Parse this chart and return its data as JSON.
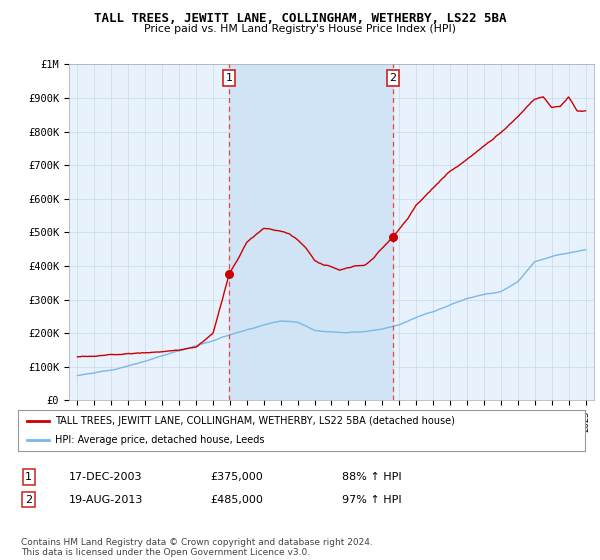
{
  "title": "TALL TREES, JEWITT LANE, COLLINGHAM, WETHERBY, LS22 5BA",
  "subtitle": "Price paid vs. HM Land Registry's House Price Index (HPI)",
  "ylim": [
    0,
    1000000
  ],
  "yticks": [
    0,
    100000,
    200000,
    300000,
    400000,
    500000,
    600000,
    700000,
    800000,
    900000,
    1000000
  ],
  "ytick_labels": [
    "£0",
    "£100K",
    "£200K",
    "£300K",
    "£400K",
    "£500K",
    "£600K",
    "£700K",
    "£800K",
    "£900K",
    "£1M"
  ],
  "xlim_start": 1994.5,
  "xlim_end": 2025.5,
  "xticks": [
    1995,
    1996,
    1997,
    1998,
    1999,
    2000,
    2001,
    2002,
    2003,
    2004,
    2005,
    2006,
    2007,
    2008,
    2009,
    2010,
    2011,
    2012,
    2013,
    2014,
    2015,
    2016,
    2017,
    2018,
    2019,
    2020,
    2021,
    2022,
    2023,
    2024,
    2025
  ],
  "hpi_color": "#7ab8e8",
  "price_color": "#cc0000",
  "vline_color": "#ee4444",
  "shade_color": "#d0e4f5",
  "point1_x": 2003.96,
  "point1_y": 375000,
  "point2_x": 2013.63,
  "point2_y": 485000,
  "legend_label_red": "TALL TREES, JEWITT LANE, COLLINGHAM, WETHERBY, LS22 5BA (detached house)",
  "legend_label_blue": "HPI: Average price, detached house, Leeds",
  "table_row1": [
    "1",
    "17-DEC-2003",
    "£375,000",
    "88% ↑ HPI"
  ],
  "table_row2": [
    "2",
    "19-AUG-2013",
    "£485,000",
    "97% ↑ HPI"
  ],
  "footer": "Contains HM Land Registry data © Crown copyright and database right 2024.\nThis data is licensed under the Open Government Licence v3.0.",
  "bg_color": "#ddeaf7",
  "plot_bg": "#e8f2fc"
}
